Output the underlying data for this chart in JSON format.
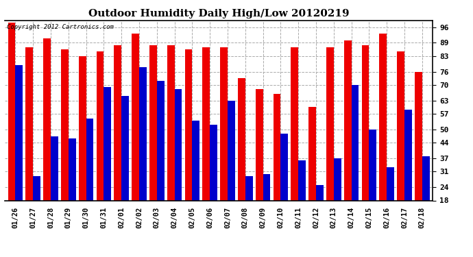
{
  "title": "Outdoor Humidity Daily High/Low 20120219",
  "copyright_text": "Copyright 2012 Cartronics.com",
  "dates": [
    "01/26",
    "01/27",
    "01/28",
    "01/29",
    "01/30",
    "01/31",
    "02/01",
    "02/02",
    "02/03",
    "02/04",
    "02/05",
    "02/06",
    "02/07",
    "02/08",
    "02/09",
    "02/10",
    "02/11",
    "02/12",
    "02/13",
    "02/14",
    "02/15",
    "02/16",
    "02/17",
    "02/18"
  ],
  "high": [
    98,
    87,
    91,
    86,
    83,
    85,
    88,
    93,
    88,
    88,
    86,
    87,
    87,
    73,
    68,
    66,
    87,
    60,
    87,
    90,
    88,
    93,
    85,
    76
  ],
  "low": [
    79,
    29,
    47,
    46,
    55,
    69,
    65,
    78,
    72,
    68,
    54,
    52,
    63,
    29,
    30,
    48,
    36,
    25,
    37,
    70,
    50,
    33,
    59,
    38
  ],
  "bar_color_high": "#ee0000",
  "bar_color_low": "#0000cc",
  "background_color": "#ffffff",
  "plot_bg_color": "#ffffff",
  "grid_color": "#aaaaaa",
  "ylim_min": 18,
  "ylim_max": 99,
  "yticks": [
    18,
    24,
    31,
    37,
    44,
    50,
    57,
    63,
    70,
    76,
    83,
    89,
    96
  ],
  "title_fontsize": 11,
  "bar_width": 0.42
}
